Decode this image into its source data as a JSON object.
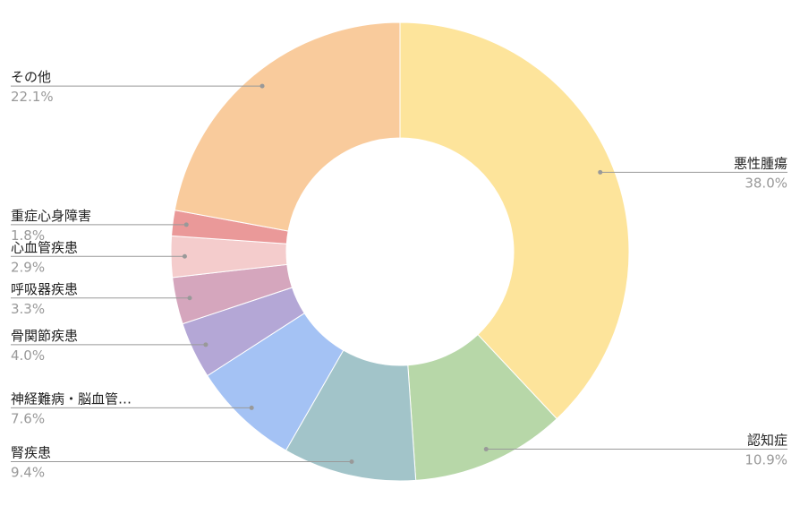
{
  "chart_data": {
    "type": "donut",
    "categories": [
      "悪性腫瘍",
      "認知症",
      "腎疾患",
      "神経難病・脳血管…",
      "骨関節疾患",
      "呼吸器疾患",
      "心血管疾患",
      "重症心身障害",
      "その他"
    ],
    "values": [
      38.0,
      10.9,
      9.4,
      7.6,
      4.0,
      3.3,
      2.9,
      1.8,
      22.1
    ],
    "value_labels": [
      "38.0%",
      "10.9%",
      "9.4%",
      "7.6%",
      "4.0%",
      "3.3%",
      "2.9%",
      "1.8%",
      "22.1%"
    ],
    "colors": [
      "#fde49b",
      "#b7d7a8",
      "#a2c4c9",
      "#a4c2f4",
      "#b4a7d6",
      "#d5a6bd",
      "#f4cccc",
      "#ea9999",
      "#f9cb9c"
    ]
  }
}
